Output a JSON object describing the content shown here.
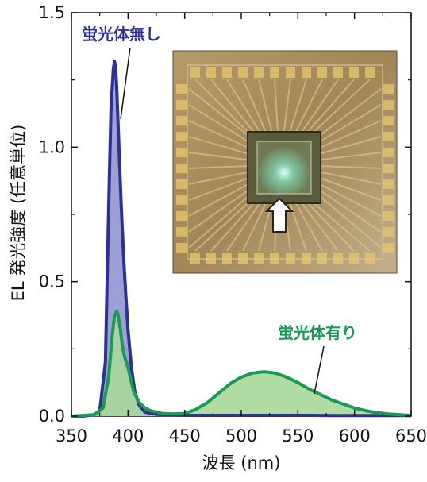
{
  "chart_data": {
    "type": "area",
    "xlabel": "波長 (nm)",
    "ylabel": "EL 発光強度 (任意単位)",
    "xlim": [
      350,
      650
    ],
    "ylim": [
      0,
      1.5
    ],
    "xticks": [
      "350",
      "400",
      "450",
      "500",
      "550",
      "600",
      "650"
    ],
    "yticks": [
      "0.0",
      "0.5",
      "1.0",
      "1.5"
    ],
    "grid": false,
    "colors": {
      "series_without_line": "#2e3192",
      "series_without_fill": "#8a8fd0",
      "series_with_line": "#1a9a55",
      "series_with_fill": "#a9d89a"
    },
    "series": [
      {
        "name": "蛍光体無し",
        "x": [
          350,
          360,
          370,
          375,
          380,
          383,
          385,
          387,
          388,
          389,
          390,
          392,
          394,
          396,
          398,
          400,
          403,
          406,
          410,
          415,
          420,
          430,
          440,
          450,
          460,
          480,
          500,
          520,
          540,
          560,
          580,
          600,
          620,
          650
        ],
        "values": [
          0.0,
          0.0,
          0.005,
          0.02,
          0.2,
          0.8,
          1.15,
          1.29,
          1.32,
          1.3,
          1.22,
          1.0,
          0.78,
          0.6,
          0.45,
          0.32,
          0.18,
          0.09,
          0.04,
          0.015,
          0.01,
          0.005,
          0.004,
          0.003,
          0.003,
          0.003,
          0.003,
          0.003,
          0.003,
          0.003,
          0.002,
          0.002,
          0.002,
          0.002
        ]
      },
      {
        "name": "蛍光体有り",
        "x": [
          350,
          370,
          378,
          383,
          386,
          388,
          390,
          391,
          393,
          395,
          397,
          400,
          405,
          410,
          415,
          420,
          430,
          440,
          450,
          460,
          470,
          480,
          490,
          500,
          510,
          520,
          530,
          540,
          550,
          560,
          570,
          580,
          590,
          600,
          610,
          620,
          630,
          640,
          650
        ],
        "values": [
          0.0,
          0.005,
          0.03,
          0.15,
          0.3,
          0.37,
          0.39,
          0.38,
          0.33,
          0.26,
          0.22,
          0.18,
          0.09,
          0.05,
          0.03,
          0.02,
          0.01,
          0.008,
          0.01,
          0.025,
          0.05,
          0.085,
          0.12,
          0.145,
          0.16,
          0.165,
          0.16,
          0.145,
          0.125,
          0.1,
          0.08,
          0.06,
          0.045,
          0.03,
          0.02,
          0.013,
          0.008,
          0.005,
          0.003
        ]
      }
    ],
    "annotations": {
      "without": "蛍光体無し",
      "with": "蛍光体有り"
    },
    "inset": {
      "description_icon": "led-chip-photo-icon",
      "arrow_icon": "up-arrow-icon"
    }
  }
}
